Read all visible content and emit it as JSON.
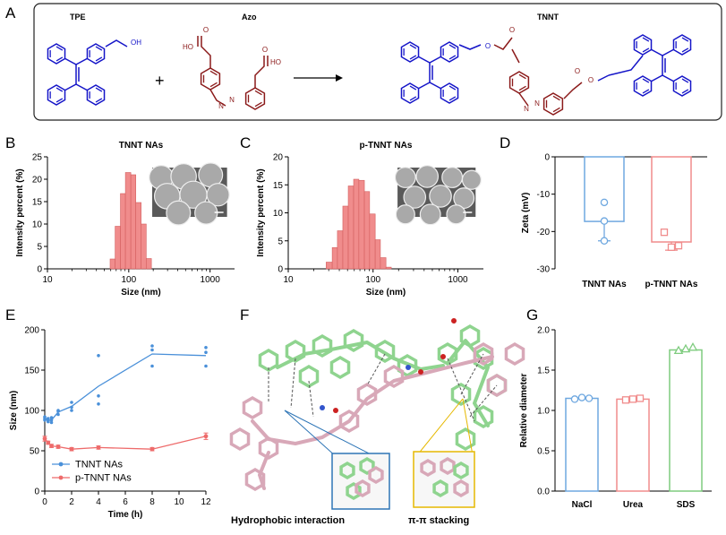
{
  "panel_a": {
    "letter": "A",
    "tpe_label": "TPE",
    "azo_label": "Azo",
    "tnnt_label": "TNNT",
    "plus": "+",
    "atoms": {
      "oh": "OH",
      "o": "O",
      "n": "N",
      "ho": "HO"
    },
    "colors": {
      "tpe": "#1414c8",
      "azo": "#8b1a1a"
    }
  },
  "panel_b": {
    "letter": "B"
  },
  "panel_c": {
    "letter": "C"
  },
  "panel_d": {
    "letter": "D"
  },
  "panel_e": {
    "letter": "E"
  },
  "panel_f": {
    "letter": "F",
    "label_left": "Hydrophobic interaction",
    "label_right": "π-π stacking"
  },
  "panel_g": {
    "letter": "G"
  },
  "chart_data": [
    {
      "id": "B",
      "type": "bar",
      "title": "TNNT NAs",
      "xlabel": "Size (nm)",
      "ylabel": "Intensity percent (%)",
      "x_scale": "log",
      "xlim": [
        10,
        2000
      ],
      "ylim": [
        0,
        25
      ],
      "xticks": [
        "10",
        "100",
        "1000"
      ],
      "yticks": [
        "0",
        "5",
        "10",
        "15",
        "20",
        "25"
      ],
      "bins": [
        [
          59,
          68
        ],
        [
          68,
          79
        ],
        [
          79,
          91
        ],
        [
          91,
          106
        ],
        [
          106,
          122
        ],
        [
          122,
          142
        ],
        [
          142,
          164
        ],
        [
          164,
          190
        ]
      ],
      "values": [
        2.2,
        9.5,
        16.8,
        21.5,
        21.0,
        14.8,
        10.0,
        2.3
      ],
      "color": "#f08c8c",
      "inset": "sem-image"
    },
    {
      "id": "C",
      "type": "bar",
      "title": "p-TNNT NAs",
      "xlabel": "Size (nm)",
      "ylabel": "Intensity percent (%)",
      "x_scale": "log",
      "xlim": [
        10,
        2000
      ],
      "ylim": [
        0,
        20
      ],
      "xticks": [
        "10",
        "100",
        "1000"
      ],
      "yticks": [
        "0",
        "5",
        "10",
        "15",
        "20"
      ],
      "bins": [
        [
          28,
          33
        ],
        [
          33,
          38
        ],
        [
          38,
          44
        ],
        [
          44,
          51
        ],
        [
          51,
          59
        ],
        [
          59,
          68
        ],
        [
          68,
          79
        ],
        [
          79,
          91
        ],
        [
          91,
          106
        ],
        [
          106,
          122
        ],
        [
          122,
          142
        ],
        [
          142,
          164
        ]
      ],
      "values": [
        1.2,
        3.8,
        6.8,
        11.2,
        14.8,
        16.0,
        15.8,
        13.8,
        9.8,
        5.2,
        2.0,
        0.3
      ],
      "color": "#f08c8c",
      "inset": "sem-image"
    },
    {
      "id": "D",
      "type": "bar",
      "ylabel": "Zeta (mV)",
      "ylim": [
        -30,
        0
      ],
      "yticks": [
        "0",
        "-10",
        "-20",
        "-30"
      ],
      "categories": [
        "TNNT NAs",
        "p-TNNT NAs"
      ],
      "values": [
        -17.3,
        -22.8
      ],
      "points": [
        [
          -12.2,
          -17.2,
          -22.5
        ],
        [
          -20.2,
          -23.8,
          -24.2
        ]
      ],
      "errors": [
        5.2,
        2.2
      ],
      "colors": [
        "#6fa8e0",
        "#f08c8c"
      ]
    },
    {
      "id": "E",
      "type": "line",
      "xlabel": "Time (h)",
      "ylabel": "Size (nm)",
      "xlim": [
        0,
        12
      ],
      "ylim": [
        0,
        200
      ],
      "xticks": [
        "0",
        "2",
        "4",
        "6",
        "8",
        "10",
        "12"
      ],
      "yticks": [
        "0",
        "50",
        "100",
        "150",
        "200"
      ],
      "legend_position": "bottom-left",
      "series": [
        {
          "name": "TNNT NAs",
          "color": "#4a90d9",
          "x": [
            0,
            0.25,
            0.5,
            1,
            2,
            4,
            8,
            12
          ],
          "y": [
            90,
            88,
            88,
            98,
            105,
            130,
            170,
            168
          ],
          "replicates": [
            [
              92,
              88,
              90
            ],
            [
              86,
              90,
              88
            ],
            [
              85,
              88,
              91
            ],
            [
              95,
              100,
              99
            ],
            [
              100,
              104,
              110
            ],
            [
              108,
              118,
              168
            ],
            [
              155,
              175,
              180
            ],
            [
              155,
              172,
              178
            ]
          ]
        },
        {
          "name": "p-TNNT NAs",
          "color": "#ee6b6b",
          "x": [
            0,
            0.25,
            0.5,
            1,
            2,
            4,
            8,
            12
          ],
          "y": [
            65,
            60,
            56,
            55,
            52,
            54,
            52,
            68
          ],
          "errors": [
            3,
            2,
            2,
            2,
            2,
            2,
            2,
            4
          ]
        }
      ]
    },
    {
      "id": "G",
      "type": "bar",
      "ylabel": "Relative diameter",
      "ylim": [
        0,
        2.0
      ],
      "yticks": [
        "0.0",
        "0.5",
        "1.0",
        "1.5",
        "2.0"
      ],
      "categories": [
        "NaCl",
        "Urea",
        "SDS"
      ],
      "values": [
        1.15,
        1.14,
        1.75
      ],
      "points": [
        [
          1.14,
          1.16,
          1.15
        ],
        [
          1.13,
          1.14,
          1.15
        ],
        [
          1.74,
          1.76,
          1.78
        ]
      ],
      "markers": [
        "circle",
        "square",
        "triangle"
      ],
      "colors": [
        "#6fa8e0",
        "#f08c8c",
        "#7fcc7f"
      ]
    }
  ]
}
